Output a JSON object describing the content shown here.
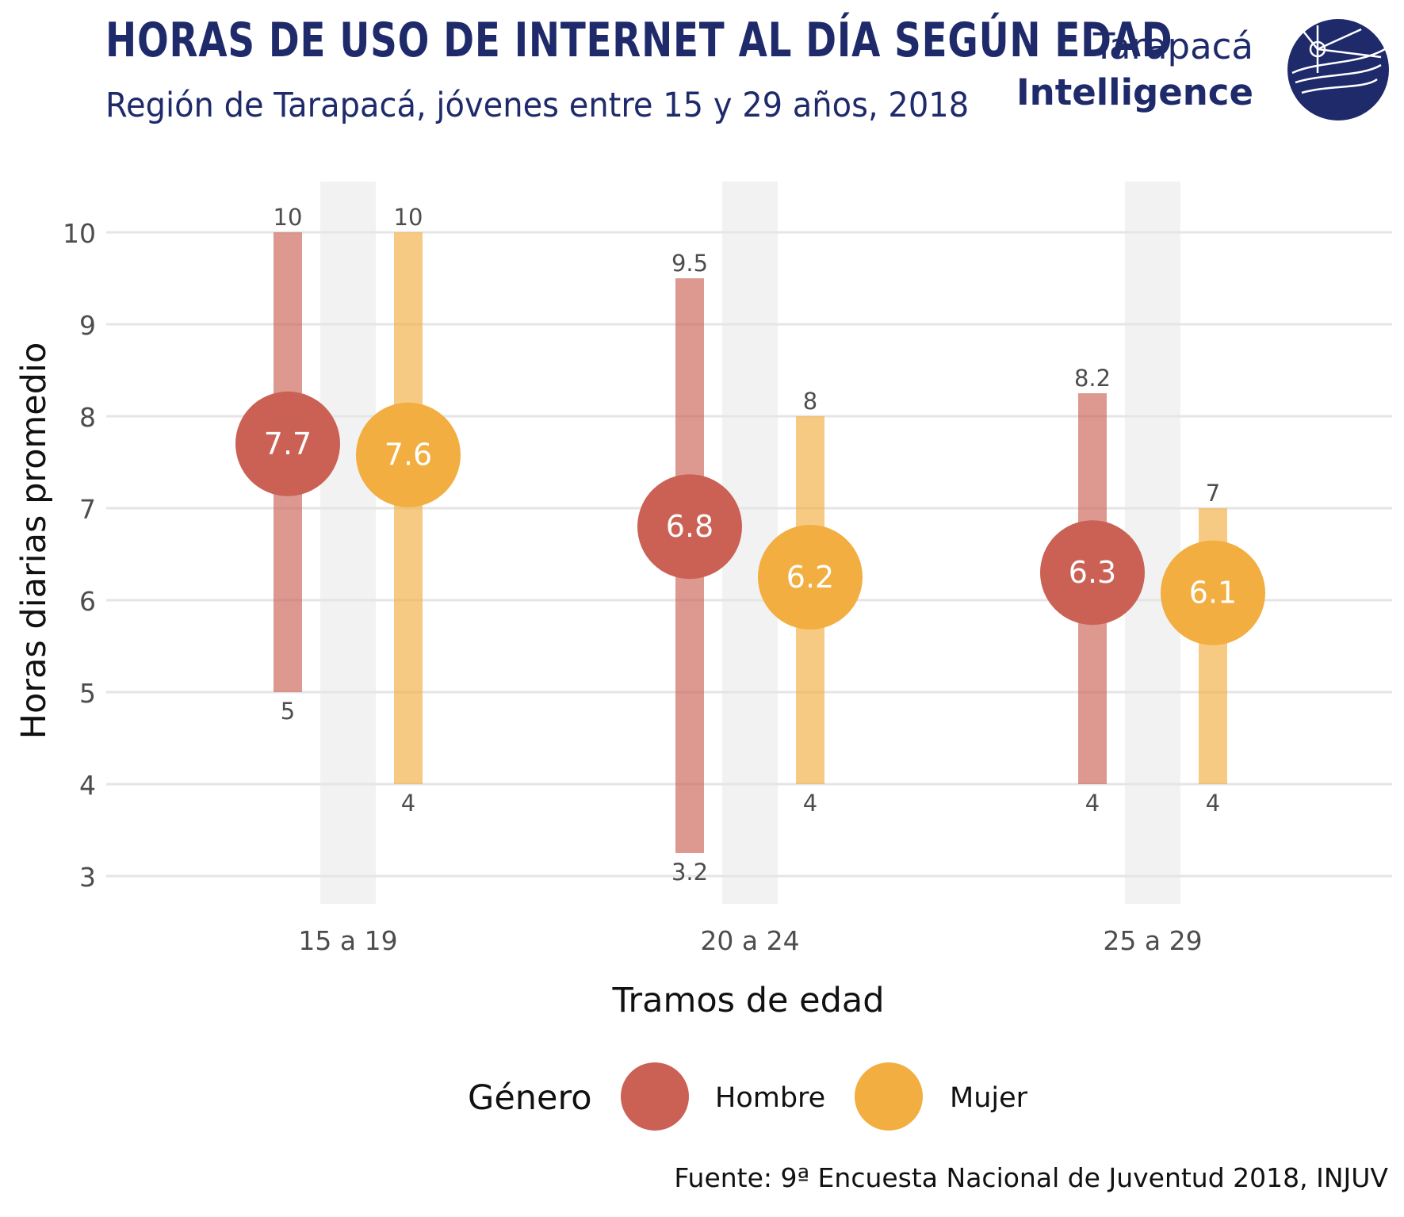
{
  "header": {
    "title": "HORAS DE USO DE INTERNET AL DÍA SEGÚN EDAD",
    "subtitle": "Región de Tarapacá, jóvenes entre 15 y 29 años, 2018"
  },
  "logo": {
    "line1": "Tarapacá",
    "line2": "Intelligence",
    "icon": "globe-logo-icon"
  },
  "footer": {
    "source": "Fuente: 9ª Encuesta Nacional de Juventud 2018, INJUV"
  },
  "colors": {
    "hombre": "#cb6154",
    "mujer": "#f2ae40",
    "brand": "#1f2a6b",
    "band": "#f2f2f2",
    "grid": "#e5e5e5"
  },
  "chart_data": {
    "type": "scatter",
    "xlabel": "Tramos de edad",
    "ylabel": "Horas diarias promedio",
    "ylim": [
      3,
      10
    ],
    "y_ticks": [
      "3",
      "4",
      "5",
      "6",
      "7",
      "8",
      "9",
      "10"
    ],
    "categories": [
      "15 a 19",
      "20 a 24",
      "25 a 29"
    ],
    "legend": {
      "title": "Género",
      "position": "bottom"
    },
    "grid": true,
    "series": [
      {
        "name": "Hombre",
        "mean": [
          7.7,
          6.8,
          6.3
        ],
        "mean_labels": [
          "7.7",
          "6.8",
          "6.3"
        ],
        "low": [
          5,
          3.25,
          4
        ],
        "low_labels": [
          "5",
          "3.2",
          "4"
        ],
        "high": [
          10,
          9.5,
          8.25
        ],
        "high_labels": [
          "10",
          "9.5",
          "8.2"
        ]
      },
      {
        "name": "Mujer",
        "mean": [
          7.58,
          6.25,
          6.08
        ],
        "mean_labels": [
          "7.6",
          "6.2",
          "6.1"
        ],
        "low": [
          4,
          4,
          4
        ],
        "low_labels": [
          "4",
          "4",
          "4"
        ],
        "high": [
          10,
          8,
          7
        ],
        "high_labels": [
          "10",
          "8",
          "7"
        ]
      }
    ]
  }
}
